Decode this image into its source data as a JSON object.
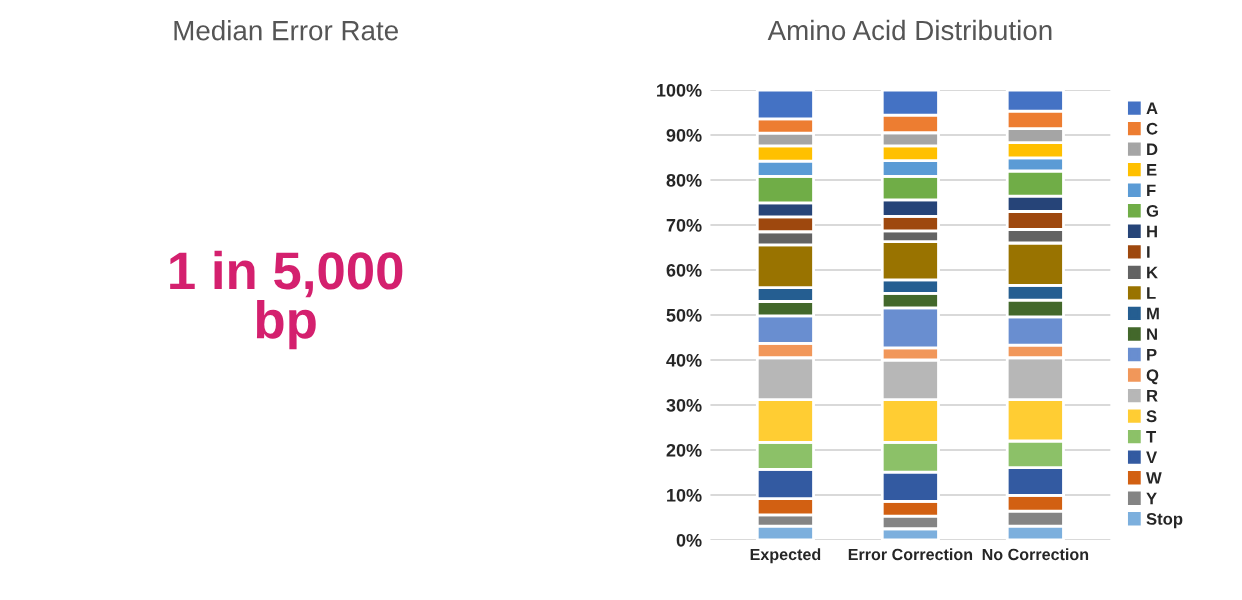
{
  "chart_data": [
    {
      "type": "other",
      "title": "Median Error Rate",
      "annotations": [
        "1 in 5,000\nbp"
      ],
      "color": "#d4206e"
    },
    {
      "type": "bar",
      "title": "Amino Acid Distribution",
      "stacked": true,
      "categories": [
        "Expected",
        "Error Correction",
        "No Correction"
      ],
      "ylim": [
        0,
        100
      ],
      "yticks": [
        {
          "value": 0,
          "label": "0%"
        },
        {
          "value": 10,
          "label": "10%"
        },
        {
          "value": 20,
          "label": "20%"
        },
        {
          "value": 30,
          "label": "30%"
        },
        {
          "value": 40,
          "label": "40%"
        },
        {
          "value": 50,
          "label": "50%"
        },
        {
          "value": 60,
          "label": "60%"
        },
        {
          "value": 70,
          "label": "70%"
        },
        {
          "value": 80,
          "label": "80%"
        },
        {
          "value": 90,
          "label": "90%"
        },
        {
          "value": 100,
          "label": "100%"
        }
      ],
      "grid": "y",
      "legend": "right",
      "series": [
        {
          "name": "Stop",
          "color": "#7cafdd",
          "values": [
            3.1,
            2.5,
            3.1
          ]
        },
        {
          "name": "Y",
          "color": "#848484",
          "values": [
            2.5,
            2.8,
            3.3
          ]
        },
        {
          "name": "W",
          "color": "#d26012",
          "values": [
            3.6,
            3.3,
            3.5
          ]
        },
        {
          "name": "V",
          "color": "#335aa1",
          "values": [
            6.5,
            6.5,
            6.2
          ]
        },
        {
          "name": "T",
          "color": "#8cc168",
          "values": [
            6,
            6.6,
            5.9
          ]
        },
        {
          "name": "S",
          "color": "#ffcd33",
          "values": [
            9.5,
            9.5,
            9.2
          ]
        },
        {
          "name": "R",
          "color": "#b7b7b7",
          "values": [
            9.3,
            8.8,
            9.3
          ]
        },
        {
          "name": "Q",
          "color": "#f1975a",
          "values": [
            3.2,
            2.7,
            2.8
          ]
        },
        {
          "name": "P",
          "color": "#698ed0",
          "values": [
            6.1,
            8.9,
            6.3
          ]
        },
        {
          "name": "N",
          "color": "#43682b",
          "values": [
            3.2,
            3.2,
            3.7
          ]
        },
        {
          "name": "M",
          "color": "#255e91",
          "values": [
            3.1,
            3,
            3.3
          ]
        },
        {
          "name": "L",
          "color": "#997300",
          "values": [
            9.5,
            8.5,
            9.4
          ]
        },
        {
          "name": "K",
          "color": "#636363",
          "values": [
            2.9,
            2.4,
            3
          ]
        },
        {
          "name": "I",
          "color": "#9e480e",
          "values": [
            3.3,
            3.2,
            4
          ]
        },
        {
          "name": "H",
          "color": "#264478",
          "values": [
            3.1,
            3.7,
            3.4
          ]
        },
        {
          "name": "G",
          "color": "#70ad47",
          "values": [
            5.9,
            5.2,
            5.6
          ]
        },
        {
          "name": "F",
          "color": "#5b9bd5",
          "values": [
            3.4,
            3.5,
            2.9
          ]
        },
        {
          "name": "E",
          "color": "#ffc000",
          "values": [
            3.4,
            3.3,
            3.4
          ]
        },
        {
          "name": "D",
          "color": "#a5a5a5",
          "values": [
            2.8,
            2.9,
            3.1
          ]
        },
        {
          "name": "C",
          "color": "#ed7d31",
          "values": [
            3.2,
            3.9,
            3.9
          ]
        },
        {
          "name": "A",
          "color": "#4472c4",
          "values": [
            6.4,
            5.6,
            4.7
          ]
        }
      ]
    }
  ]
}
